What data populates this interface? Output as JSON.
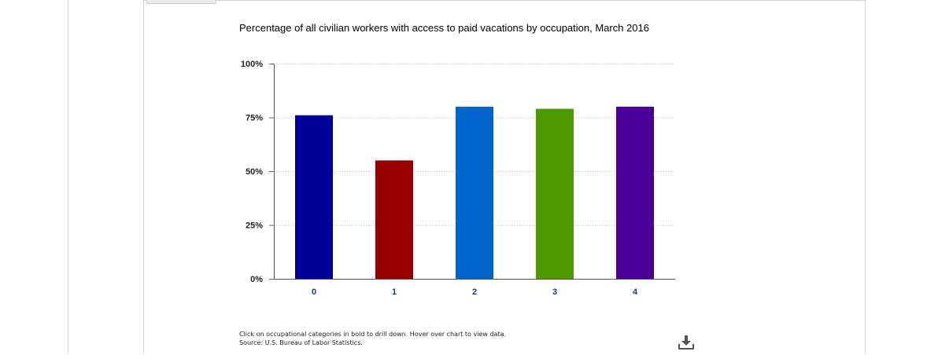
{
  "chart_data": {
    "type": "bar",
    "title": "Percentage of all civilian workers with access to paid vacations by occupation, March 2016",
    "categories": [
      "0",
      "1",
      "2",
      "3",
      "4"
    ],
    "values": [
      76,
      55,
      80,
      79,
      80
    ],
    "colors": [
      "#000099",
      "#990000",
      "#0066cc",
      "#4d9900",
      "#4d0099"
    ],
    "ylim": [
      0,
      100
    ],
    "yticks": [
      0,
      25,
      50,
      75,
      100
    ],
    "ytick_labels": [
      "0%",
      "25%",
      "50%",
      "75%",
      "100%"
    ],
    "grid": true,
    "xlabel": "",
    "ylabel": ""
  },
  "footnote": {
    "line1": "Click on occupational categories in bold to drill down. Hover over chart to view data.",
    "line2": "Source: U.S. Bureau of Labor Statistics."
  },
  "download": {
    "icon": "download-icon"
  }
}
